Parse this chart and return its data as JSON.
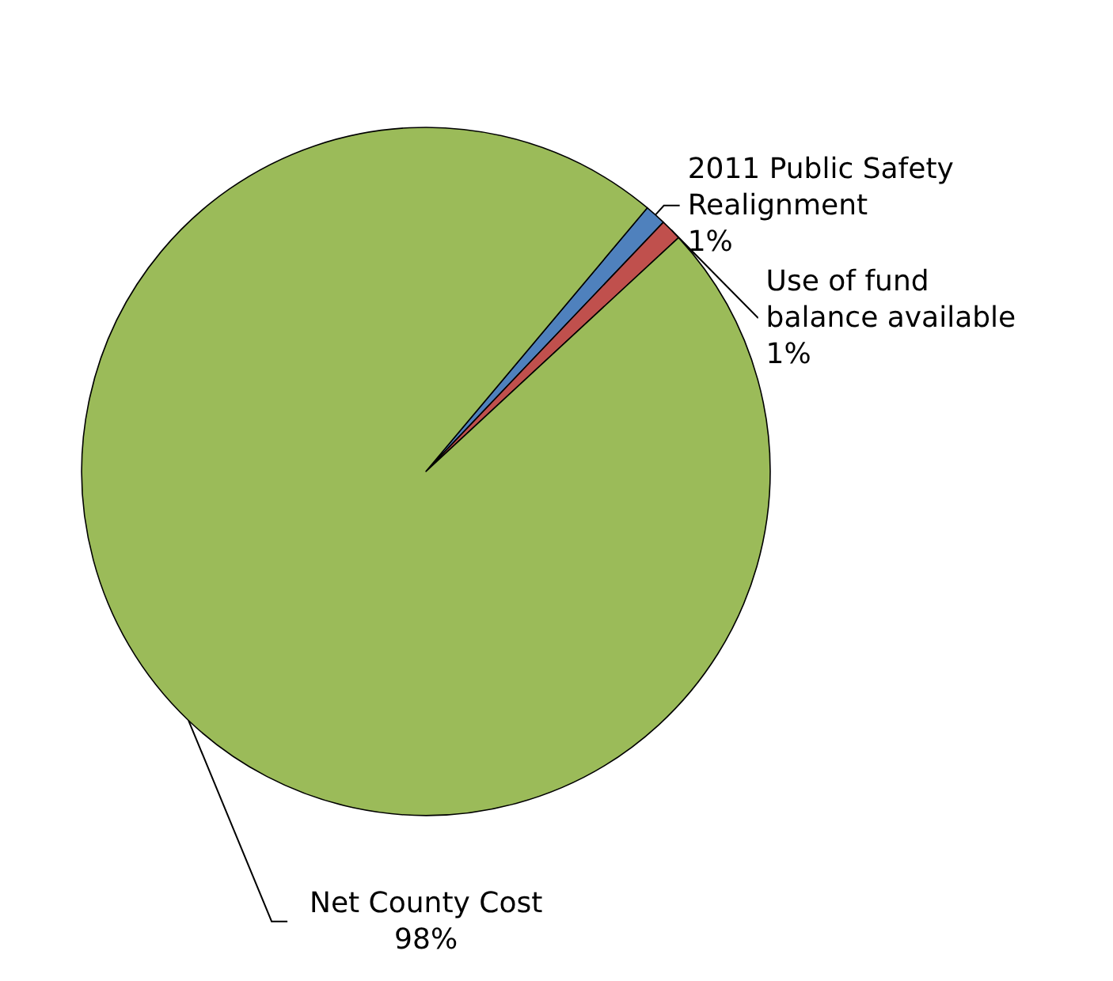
{
  "chart_data": {
    "type": "pie",
    "categories": [
      "2011 Public Safety Realignment",
      "Use of fund balance available",
      "Net County Cost"
    ],
    "values": [
      1,
      1,
      98
    ],
    "colors": [
      "#4f81bd",
      "#c0504d",
      "#9bbb59"
    ],
    "value_labels": [
      "1%",
      "1%",
      "98%"
    ],
    "legend": false
  }
}
